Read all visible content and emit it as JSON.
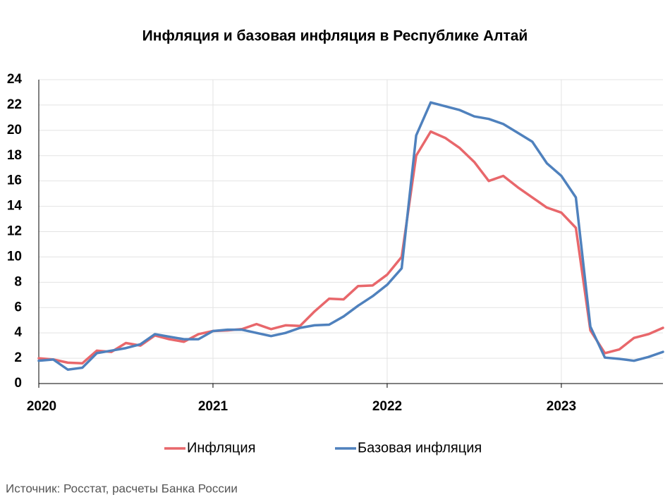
{
  "chart_data": {
    "type": "line",
    "title": "Инфляция и базовая инфляция в Республике Алтай",
    "source": "Источник: Росстат, расчеты Банка России",
    "categories": [
      "2020",
      null,
      null,
      null,
      null,
      null,
      null,
      null,
      null,
      null,
      null,
      null,
      "2021",
      null,
      null,
      null,
      null,
      null,
      null,
      null,
      null,
      null,
      null,
      null,
      "2022",
      null,
      null,
      null,
      null,
      null,
      null,
      null,
      null,
      null,
      null,
      null,
      "2023",
      null,
      null,
      null,
      null,
      null,
      null,
      null
    ],
    "series": [
      {
        "name": "Инфляция",
        "color": "#e8676b",
        "values": [
          2.0,
          1.9,
          1.65,
          1.6,
          2.6,
          2.5,
          3.2,
          3.0,
          3.8,
          3.5,
          3.3,
          3.9,
          4.15,
          4.2,
          4.3,
          4.7,
          4.3,
          4.6,
          4.55,
          5.7,
          6.7,
          6.65,
          7.7,
          7.75,
          8.6,
          10.0,
          18.0,
          19.9,
          19.4,
          18.6,
          17.5,
          16.0,
          16.4,
          15.5,
          14.7,
          13.9,
          13.5,
          12.3,
          4.2,
          2.4,
          2.7,
          3.6,
          3.9,
          4.4
        ]
      },
      {
        "name": "Базовая инфляция",
        "color": "#4f81bd",
        "values": [
          1.8,
          1.9,
          1.1,
          1.25,
          2.4,
          2.6,
          2.8,
          3.1,
          3.9,
          3.7,
          3.5,
          3.5,
          4.15,
          4.25,
          4.25,
          4.0,
          3.75,
          4.0,
          4.4,
          4.6,
          4.65,
          5.3,
          6.15,
          6.9,
          7.8,
          9.1,
          19.6,
          22.2,
          21.9,
          21.6,
          21.1,
          20.9,
          20.5,
          19.8,
          19.1,
          17.4,
          16.4,
          14.7,
          4.5,
          2.05,
          1.95,
          1.8,
          2.1,
          2.5
        ]
      }
    ],
    "ylim": [
      0,
      24
    ],
    "yticks": [
      0,
      2,
      4,
      6,
      8,
      10,
      12,
      14,
      16,
      18,
      20,
      22,
      24
    ],
    "grid": true,
    "legend": "bottom"
  }
}
